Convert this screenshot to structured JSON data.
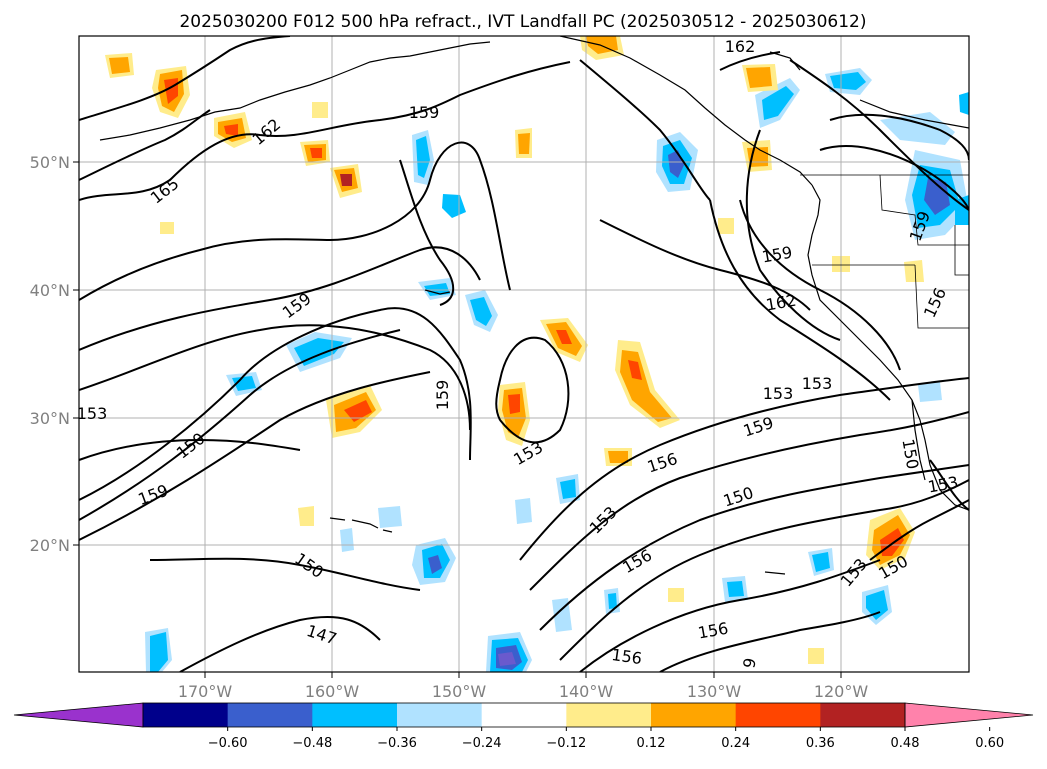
{
  "title": "2025030200 F012 500 hPa refract., IVT Landfall PC (2025030512 - 2025030612)",
  "map": {
    "lat_ticks": [
      "50°N",
      "40°N",
      "30°N",
      "20°N"
    ],
    "lon_ticks": [
      "170°W",
      "160°W",
      "150°W",
      "140°W",
      "130°W",
      "120°W"
    ],
    "grid": true,
    "contour_labels": [
      "165",
      "162",
      "159",
      "159",
      "162",
      "159",
      "162",
      "159",
      "153",
      "150",
      "159",
      "159",
      "153",
      "150",
      "153",
      "153",
      "159",
      "156",
      "150",
      "153",
      "156",
      "150",
      "147",
      "156",
      "156",
      "153",
      "150",
      "153",
      "156",
      "150",
      "153",
      "9"
    ]
  },
  "colorbar": {
    "tick_labels": [
      "−0.60",
      "−0.48",
      "−0.36",
      "−0.24",
      "−0.12",
      "0.12",
      "0.24",
      "0.36",
      "0.48",
      "0.60"
    ],
    "colors": [
      "#9a32cd",
      "#00008b",
      "#3a5fcd",
      "#00bfff",
      "#b0e2ff",
      "#ffffff",
      "#ffec8b",
      "#ffa500",
      "#ff4500",
      "#b22222",
      "#ff82ab"
    ]
  },
  "colors": {
    "positive_light": "#ffec8b",
    "positive_mid": "#ffa500",
    "positive_strong": "#ff4500",
    "negative_light": "#b0e2ff",
    "negative_mid": "#00bfff",
    "negative_strong": "#3a5fcd",
    "negative_extreme": "#6a5acd"
  }
}
